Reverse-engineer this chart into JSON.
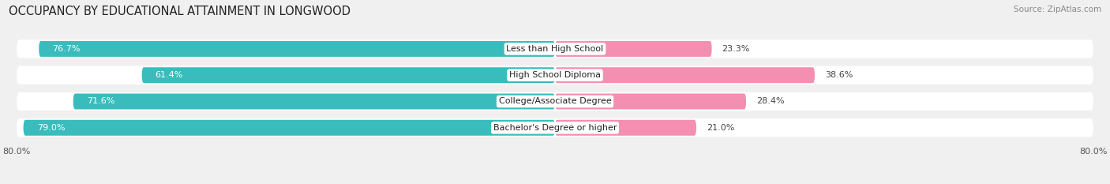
{
  "title": "OCCUPANCY BY EDUCATIONAL ATTAINMENT IN LONGWOOD",
  "source": "Source: ZipAtlas.com",
  "categories": [
    "Less than High School",
    "High School Diploma",
    "College/Associate Degree",
    "Bachelor's Degree or higher"
  ],
  "owner_values": [
    76.7,
    61.4,
    71.6,
    79.0
  ],
  "renter_values": [
    23.3,
    38.6,
    28.4,
    21.0
  ],
  "owner_color": "#3BBCBC",
  "renter_color": "#F48FB1",
  "xlim": [
    -80,
    80
  ],
  "xtick_left": "80.0%",
  "xtick_right": "80.0%",
  "xtick_positions": [
    -80,
    80
  ],
  "background_color": "#f0f0f0",
  "bar_background": "#e8e8e8",
  "title_fontsize": 10.5,
  "source_fontsize": 7.5,
  "label_fontsize": 8,
  "value_fontsize": 8
}
